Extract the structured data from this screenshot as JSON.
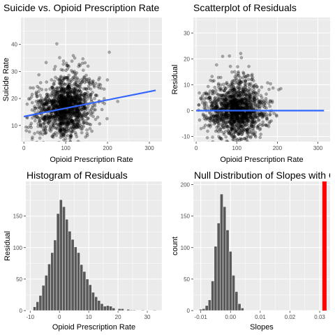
{
  "chart_data": [
    {
      "id": "p1",
      "type": "scatter",
      "title": "Suicide vs. Opioid Prescription Rate",
      "xlabel": "Opioid Prescription Rate",
      "ylabel": "Suicide Rate",
      "xlim": [
        -7,
        330
      ],
      "ylim": [
        4,
        50
      ],
      "xticks": [
        0,
        100,
        200,
        300
      ],
      "yticks": [
        10,
        20,
        30,
        40
      ],
      "point_cloud": {
        "n": 1500,
        "x_center": 85,
        "x_spread": 35,
        "y_intercept": 13.5,
        "slope": 0.031,
        "y_spread": 5,
        "note": "dense cloud of semi-transparent black points"
      },
      "fit_line": {
        "color": "#3366ff",
        "x": [
          0,
          315
        ],
        "y": [
          13.3,
          23.0
        ]
      }
    },
    {
      "id": "p2",
      "type": "scatter",
      "title": "Scatterplot of Residuals",
      "xlabel": "Opioid Prescription Rate",
      "ylabel": "Residual",
      "xlim": [
        -7,
        330
      ],
      "ylim": [
        -12,
        36
      ],
      "xticks": [
        0,
        100,
        200,
        300
      ],
      "yticks": [
        -10,
        0,
        10,
        20,
        30
      ],
      "point_cloud": {
        "n": 1500,
        "x_center": 85,
        "x_spread": 35,
        "y_center": 0,
        "y_spread": 5
      },
      "fit_line": {
        "color": "#3366ff",
        "x": [
          0,
          315
        ],
        "y": [
          0,
          0
        ]
      }
    },
    {
      "id": "p3",
      "type": "bar",
      "title": "Histogram of Residuals",
      "xlabel": "Opioid Prescription Rate",
      "ylabel": "Residual",
      "xlim": [
        -11.5,
        35
      ],
      "ylim": [
        0,
        205
      ],
      "xticks": [
        -10,
        0,
        10,
        20,
        30
      ],
      "yticks": [
        0,
        50,
        100,
        150
      ],
      "bin_start": -9,
      "bin_width": 1,
      "bar_fill": "#595959",
      "bar_stroke": "#ffffff",
      "values": [
        6,
        14,
        24,
        40,
        56,
        74,
        92,
        112,
        154,
        176,
        165,
        145,
        126,
        113,
        101,
        92,
        73,
        62,
        50,
        41,
        29,
        22,
        16,
        11,
        7,
        8,
        7,
        4,
        0,
        3,
        3,
        0,
        2,
        1,
        1,
        0,
        0,
        1,
        0,
        0,
        0,
        1
      ]
    },
    {
      "id": "p4",
      "type": "bar",
      "title": "Null Distribution of Slopes with Observed Slope",
      "xlabel": "Slopes",
      "ylabel": "count",
      "xlim": [
        -0.0125,
        0.0335
      ],
      "ylim": [
        0,
        205
      ],
      "xticks": [
        -0.01,
        0.0,
        0.01,
        0.02,
        0.03
      ],
      "xtick_labels": [
        "-0.01",
        "0.00",
        "0.01",
        "0.02",
        "0.03"
      ],
      "yticks": [
        0,
        50,
        100,
        150,
        200
      ],
      "bin_start": -0.0105,
      "bin_width": 0.001,
      "bar_fill": "#595959",
      "bar_stroke": "#ffffff",
      "values": [
        2,
        3,
        8,
        17,
        47,
        102,
        139,
        185,
        165,
        128,
        94,
        56,
        30,
        11,
        4
      ],
      "observed_slope": {
        "value": 0.0316,
        "color": "#ff0000"
      }
    }
  ]
}
